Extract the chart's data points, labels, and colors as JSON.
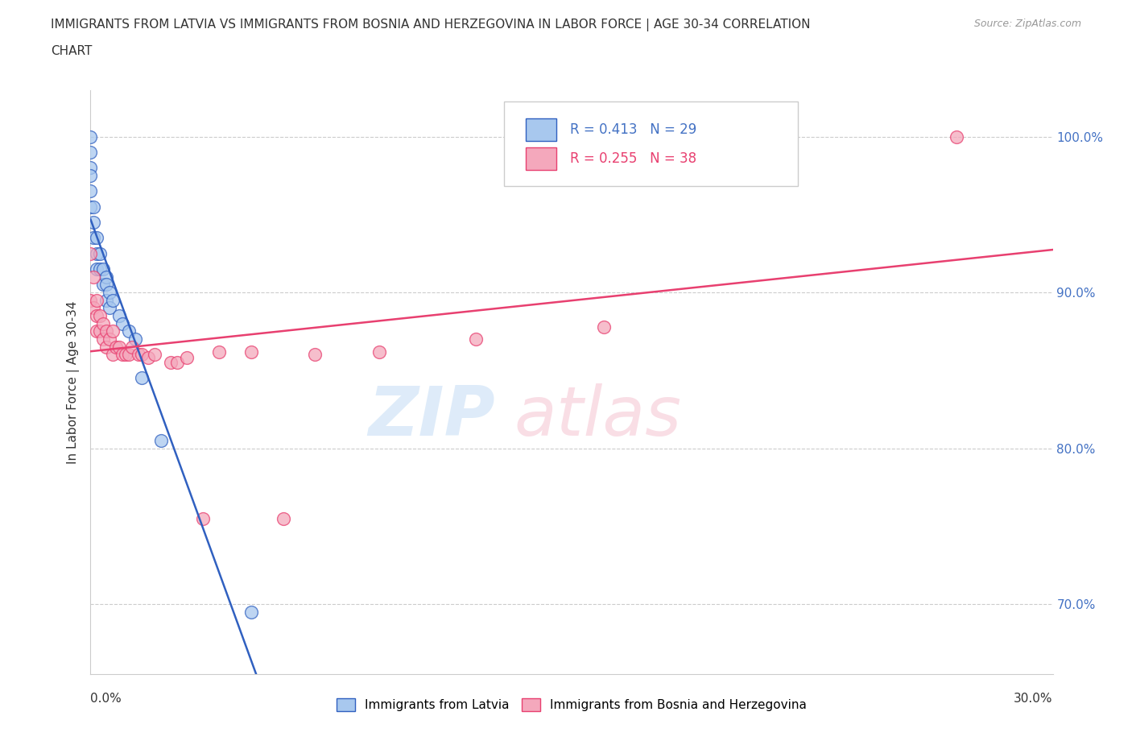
{
  "title_line1": "IMMIGRANTS FROM LATVIA VS IMMIGRANTS FROM BOSNIA AND HERZEGOVINA IN LABOR FORCE | AGE 30-34 CORRELATION",
  "title_line2": "CHART",
  "source_text": "Source: ZipAtlas.com",
  "xlabel_bottom_left": "0.0%",
  "xlabel_bottom_right": "30.0%",
  "ylabel": "In Labor Force | Age 30-34",
  "ytick_labels": [
    "70.0%",
    "80.0%",
    "90.0%",
    "100.0%"
  ],
  "ytick_values": [
    0.7,
    0.8,
    0.9,
    1.0
  ],
  "xlim": [
    0.0,
    0.3
  ],
  "ylim": [
    0.655,
    1.03
  ],
  "legend_r1": "R = 0.413",
  "legend_n1": "N = 29",
  "legend_r2": "R = 0.255",
  "legend_n2": "N = 38",
  "color_latvia": "#A8C8EE",
  "color_bosnia": "#F4A8BC",
  "color_latvia_line": "#3060C0",
  "color_bosnia_line": "#E84070",
  "watermark_zip": "ZIP",
  "watermark_atlas": "atlas",
  "latvia_x": [
    0.0,
    0.0,
    0.0,
    0.0,
    0.0,
    0.0,
    0.001,
    0.001,
    0.001,
    0.002,
    0.002,
    0.002,
    0.003,
    0.003,
    0.004,
    0.004,
    0.005,
    0.005,
    0.005,
    0.006,
    0.006,
    0.007,
    0.009,
    0.01,
    0.012,
    0.014,
    0.016,
    0.022,
    0.05
  ],
  "latvia_y": [
    1.0,
    0.99,
    0.98,
    0.975,
    0.965,
    0.955,
    0.955,
    0.945,
    0.935,
    0.935,
    0.925,
    0.915,
    0.925,
    0.915,
    0.915,
    0.905,
    0.91,
    0.905,
    0.895,
    0.9,
    0.89,
    0.895,
    0.885,
    0.88,
    0.875,
    0.87,
    0.845,
    0.805,
    0.695
  ],
  "bosnia_x": [
    0.0,
    0.0,
    0.001,
    0.001,
    0.002,
    0.002,
    0.002,
    0.003,
    0.003,
    0.004,
    0.004,
    0.005,
    0.005,
    0.006,
    0.007,
    0.007,
    0.008,
    0.009,
    0.01,
    0.011,
    0.012,
    0.013,
    0.015,
    0.016,
    0.018,
    0.02,
    0.025,
    0.027,
    0.03,
    0.035,
    0.04,
    0.05,
    0.06,
    0.07,
    0.09,
    0.12,
    0.16,
    0.27
  ],
  "bosnia_y": [
    0.925,
    0.895,
    0.91,
    0.89,
    0.895,
    0.885,
    0.875,
    0.885,
    0.875,
    0.88,
    0.87,
    0.875,
    0.865,
    0.87,
    0.875,
    0.86,
    0.865,
    0.865,
    0.86,
    0.86,
    0.86,
    0.865,
    0.86,
    0.86,
    0.858,
    0.86,
    0.855,
    0.855,
    0.858,
    0.755,
    0.862,
    0.862,
    0.755,
    0.86,
    0.862,
    0.87,
    0.878,
    1.0
  ]
}
